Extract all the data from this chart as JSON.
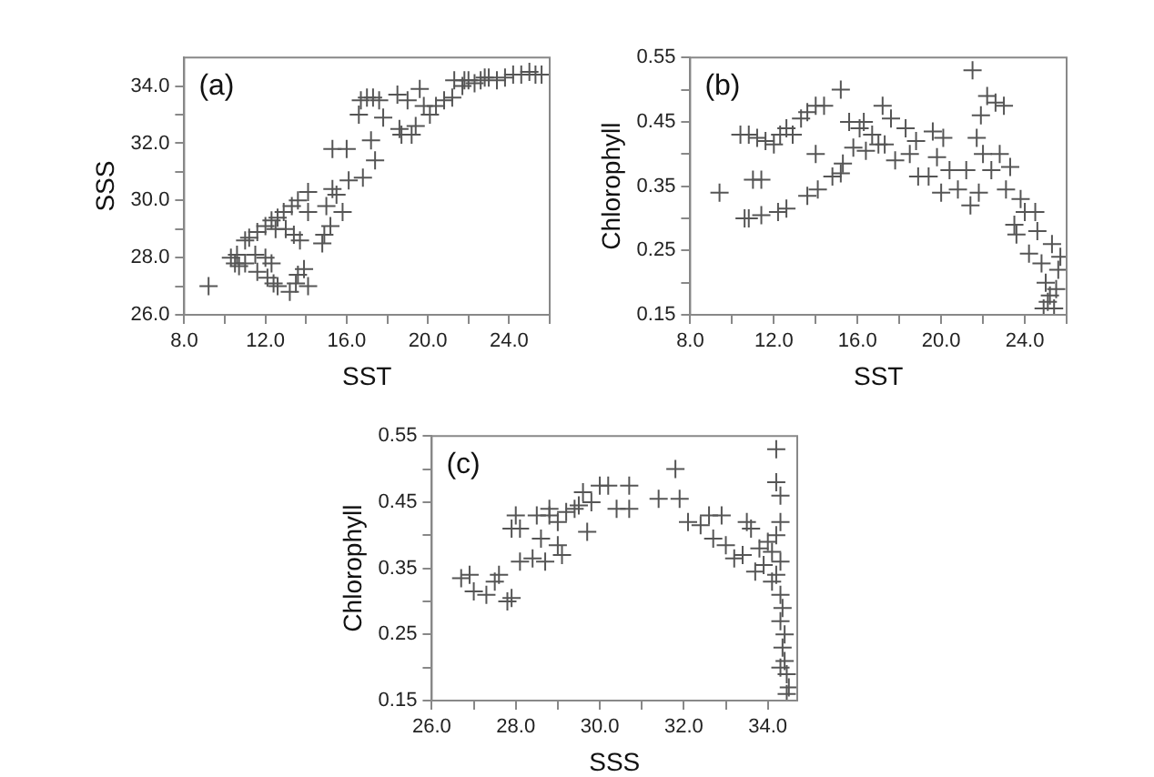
{
  "chart_data": [
    {
      "type": "scatter",
      "xlabel": "SST",
      "ylabel": "SSS",
      "annotations": [
        "(a)"
      ],
      "marker": "cross",
      "color": "#555555",
      "xlim": [
        8,
        26
      ],
      "ylim": [
        26,
        35
      ],
      "xticks": [
        {
          "value": 8,
          "label": "8.0"
        },
        {
          "value": 10,
          "label": null
        },
        {
          "value": 12,
          "label": "12.0"
        },
        {
          "value": 14,
          "label": null
        },
        {
          "value": 16,
          "label": "16.0"
        },
        {
          "value": 18,
          "label": null
        },
        {
          "value": 20,
          "label": "20.0"
        },
        {
          "value": 22,
          "label": null
        },
        {
          "value": 24,
          "label": "24.0"
        },
        {
          "value": 26,
          "label": null
        }
      ],
      "yticks": [
        {
          "value": 26,
          "label": "26.0"
        },
        {
          "value": 27,
          "label": null
        },
        {
          "value": 28,
          "label": "28.0"
        },
        {
          "value": 29,
          "label": null
        },
        {
          "value": 30,
          "label": "30.0"
        },
        {
          "value": 31,
          "label": null
        },
        {
          "value": 32,
          "label": "32.0"
        },
        {
          "value": 33,
          "label": null
        },
        {
          "value": 34,
          "label": "34.0"
        }
      ],
      "x": [
        9.2,
        10.3,
        10.5,
        10.7,
        10.6,
        11.0,
        11.2,
        11.6,
        12.0,
        12.3,
        12.6,
        12.9,
        13.3,
        13.6,
        14.1,
        11.5,
        11.0,
        12.0,
        12.3,
        11.6,
        12.1,
        12.4,
        12.6,
        13.2,
        13.5,
        13.6,
        13.9,
        14.1,
        12.5,
        13.0,
        13.4,
        13.7,
        14.1,
        14.8,
        14.9,
        15.2,
        15.0,
        15.3,
        15.5,
        15.8,
        15.3,
        16.0,
        16.1,
        16.8,
        17.2,
        17.4,
        16.6,
        16.7,
        17.0,
        17.3,
        17.6,
        17.8,
        18.5,
        18.6,
        18.7,
        19.0,
        19.2,
        19.4,
        19.6,
        19.8,
        20.1,
        20.4,
        20.8,
        21.2,
        21.3,
        21.7,
        22.0,
        22.3,
        22.6,
        23.0,
        23.4,
        23.8,
        24.2,
        24.6,
        25.0,
        25.3,
        25.6,
        22.8,
        21.8
      ],
      "values": [
        27.0,
        28.0,
        27.8,
        27.7,
        28.1,
        28.6,
        28.7,
        28.9,
        29.1,
        29.3,
        29.4,
        29.6,
        29.8,
        30.0,
        30.3,
        28.1,
        27.8,
        28.0,
        27.8,
        27.5,
        27.3,
        27.1,
        27.0,
        26.8,
        27.1,
        27.4,
        27.6,
        27.0,
        29.0,
        29.0,
        28.8,
        28.6,
        29.6,
        28.5,
        28.8,
        29.1,
        29.8,
        30.4,
        30.2,
        29.6,
        31.8,
        31.8,
        30.7,
        30.8,
        32.1,
        31.4,
        33.0,
        33.5,
        33.6,
        33.6,
        33.5,
        32.9,
        33.7,
        32.5,
        32.3,
        33.5,
        32.3,
        32.6,
        33.9,
        33.3,
        33.0,
        33.3,
        33.5,
        33.6,
        34.2,
        34.0,
        34.2,
        34.1,
        34.2,
        34.3,
        34.2,
        34.3,
        34.4,
        34.4,
        34.5,
        34.4,
        34.4,
        34.3,
        34.2
      ]
    },
    {
      "type": "scatter",
      "xlabel": "SST",
      "ylabel": "Chlorophyll",
      "annotations": [
        "(b)"
      ],
      "marker": "cross",
      "color": "#555555",
      "xlim": [
        8,
        26
      ],
      "ylim": [
        0.15,
        0.55
      ],
      "xticks": [
        {
          "value": 8,
          "label": "8.0"
        },
        {
          "value": 10,
          "label": null
        },
        {
          "value": 12,
          "label": "12.0"
        },
        {
          "value": 14,
          "label": null
        },
        {
          "value": 16,
          "label": "16.0"
        },
        {
          "value": 18,
          "label": null
        },
        {
          "value": 20,
          "label": "20.0"
        },
        {
          "value": 22,
          "label": null
        },
        {
          "value": 24,
          "label": "24.0"
        },
        {
          "value": 26,
          "label": null
        }
      ],
      "yticks": [
        0.15,
        {
          "value": 0.2,
          "label": null
        },
        0.25,
        {
          "value": 0.3,
          "label": null
        },
        0.35,
        {
          "value": 0.4,
          "label": null
        },
        0.45,
        {
          "value": 0.5,
          "label": null
        },
        0.55
      ],
      "x": [
        9.4,
        10.4,
        10.8,
        11.2,
        11.6,
        12.0,
        12.3,
        12.6,
        12.9,
        13.3,
        13.6,
        14.0,
        14.4,
        15.2,
        11.0,
        11.4,
        14.0,
        10.6,
        10.8,
        11.4,
        12.2,
        12.6,
        13.6,
        14.1,
        14.8,
        15.3,
        15.2,
        15.6,
        16.1,
        16.3,
        16.4,
        16.7,
        17.0,
        17.3,
        17.2,
        17.6,
        17.8,
        18.5,
        18.8,
        18.9,
        19.4,
        19.6,
        19.8,
        20.1,
        20.0,
        20.4,
        20.8,
        21.2,
        21.4,
        21.5,
        21.7,
        21.8,
        21.9,
        22.2,
        22.4,
        22.6,
        22.8,
        23.0,
        23.1,
        23.3,
        23.5,
        23.6,
        23.8,
        24.0,
        24.2,
        24.5,
        24.6,
        24.8,
        25.0,
        25.1,
        25.3,
        25.5,
        25.4,
        25.6,
        25.7,
        25.2,
        24.9,
        22.0,
        18.3,
        15.8
      ],
      "values": [
        0.34,
        0.43,
        0.43,
        0.425,
        0.42,
        0.415,
        0.43,
        0.44,
        0.43,
        0.455,
        0.465,
        0.475,
        0.475,
        0.5,
        0.36,
        0.36,
        0.4,
        0.3,
        0.3,
        0.305,
        0.31,
        0.315,
        0.335,
        0.345,
        0.365,
        0.385,
        0.37,
        0.45,
        0.44,
        0.45,
        0.405,
        0.43,
        0.415,
        0.415,
        0.475,
        0.455,
        0.39,
        0.4,
        0.42,
        0.365,
        0.365,
        0.435,
        0.395,
        0.425,
        0.34,
        0.375,
        0.345,
        0.375,
        0.32,
        0.53,
        0.425,
        0.34,
        0.46,
        0.49,
        0.375,
        0.48,
        0.4,
        0.475,
        0.345,
        0.38,
        0.29,
        0.275,
        0.33,
        0.31,
        0.245,
        0.31,
        0.28,
        0.23,
        0.2,
        0.17,
        0.26,
        0.19,
        0.16,
        0.22,
        0.24,
        0.18,
        0.16,
        0.4,
        0.44,
        0.41
      ]
    },
    {
      "type": "scatter",
      "xlabel": "SSS",
      "ylabel": "Chlorophyll",
      "annotations": [
        "(c)"
      ],
      "marker": "cross",
      "color": "#555555",
      "xlim": [
        26,
        34.7
      ],
      "ylim": [
        0.15,
        0.55
      ],
      "xticks": [
        {
          "value": 26,
          "label": "26.0"
        },
        {
          "value": 27,
          "label": null
        },
        {
          "value": 28,
          "label": "28.0"
        },
        {
          "value": 29,
          "label": null
        },
        {
          "value": 30,
          "label": "30.0"
        },
        {
          "value": 31,
          "label": null
        },
        {
          "value": 32,
          "label": "32.0"
        },
        {
          "value": 33,
          "label": null
        },
        {
          "value": 34,
          "label": "34.0"
        }
      ],
      "yticks": [
        0.15,
        {
          "value": 0.2,
          "label": null
        },
        0.25,
        {
          "value": 0.3,
          "label": null
        },
        0.35,
        {
          "value": 0.4,
          "label": null
        },
        0.45,
        {
          "value": 0.5,
          "label": null
        },
        0.55
      ],
      "x": [
        26.7,
        26.9,
        27.0,
        27.3,
        27.5,
        27.6,
        27.8,
        27.9,
        27.9,
        28.0,
        28.1,
        28.1,
        28.4,
        28.5,
        28.6,
        28.7,
        28.8,
        28.8,
        29.0,
        29.0,
        29.1,
        29.2,
        29.4,
        29.5,
        29.6,
        29.7,
        29.8,
        30.0,
        30.2,
        30.4,
        30.7,
        30.7,
        31.4,
        31.8,
        31.9,
        32.1,
        32.4,
        32.6,
        32.7,
        32.9,
        33.0,
        33.2,
        33.4,
        33.5,
        33.6,
        33.7,
        33.8,
        33.9,
        34.0,
        34.1,
        34.2,
        34.2,
        34.3,
        34.3,
        34.2,
        34.3,
        34.3,
        34.35,
        34.3,
        34.4,
        34.35,
        34.4,
        34.3,
        34.45,
        34.5,
        34.45,
        34.1,
        34.2
      ],
      "values": [
        0.335,
        0.34,
        0.315,
        0.31,
        0.33,
        0.34,
        0.3,
        0.305,
        0.41,
        0.43,
        0.41,
        0.36,
        0.365,
        0.43,
        0.395,
        0.36,
        0.43,
        0.44,
        0.385,
        0.42,
        0.37,
        0.435,
        0.44,
        0.445,
        0.465,
        0.405,
        0.45,
        0.475,
        0.475,
        0.44,
        0.475,
        0.44,
        0.455,
        0.5,
        0.455,
        0.42,
        0.415,
        0.43,
        0.395,
        0.43,
        0.385,
        0.365,
        0.37,
        0.42,
        0.41,
        0.345,
        0.38,
        0.355,
        0.39,
        0.375,
        0.53,
        0.48,
        0.46,
        0.42,
        0.4,
        0.36,
        0.31,
        0.29,
        0.27,
        0.25,
        0.23,
        0.21,
        0.2,
        0.19,
        0.17,
        0.16,
        0.33,
        0.34
      ]
    }
  ]
}
